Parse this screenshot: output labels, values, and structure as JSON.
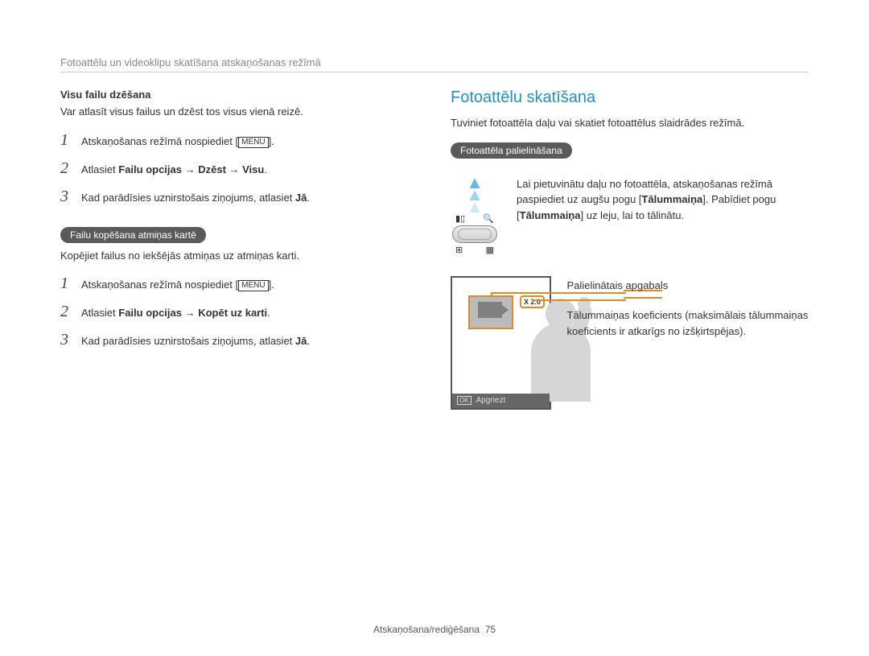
{
  "header": {
    "breadcrumb": "Fotoattēlu un videoklipu skatīšana atskaņošanas režīmā"
  },
  "left": {
    "deleteAll": {
      "heading": "Visu failu dzēšana",
      "intro": "Var atlasīt visus failus un dzēst tos visus vienā reizē.",
      "steps": {
        "s1a": "Atskaņošanas režīmā nospiediet [",
        "s1menu": "MENU",
        "s1b": "].",
        "s2a": "Atlasiet ",
        "s2b": "Failu opcijas → Dzēst → Visu",
        "s2c": ".",
        "s3a": "Kad parādīsies uznirstošais ziņojums, atlasiet ",
        "s3b": "Jā",
        "s3c": "."
      }
    },
    "copy": {
      "pill": "Failu kopēšana atmiņas kartē",
      "intro": "Kopējiet failus no iekšējās atmiņas uz atmiņas karti.",
      "steps": {
        "s1a": "Atskaņošanas režīmā nospiediet [",
        "s1menu": "MENU",
        "s1b": "].",
        "s2a": "Atlasiet ",
        "s2b": "Failu opcijas → Kopēt uz karti",
        "s2c": ".",
        "s3a": "Kad parādīsies uznirstošais ziņojums, atlasiet ",
        "s3b": "Jā",
        "s3c": "."
      }
    }
  },
  "right": {
    "title": "Fotoattēlu skatīšana",
    "intro": "Tuviniet fotoattēla daļu vai skatiet fotoattēlus slaidrādes režīmā.",
    "pill": "Fotoattēla palielināšana",
    "zoomDesc1": "Lai pietuvinātu daļu no fotoattēla, atskaņošanas režīmā paspiediet uz augšu pogu [",
    "zoomDesc2": "Tālummaiņa",
    "zoomDesc3": "]. Pabīdiet pogu [",
    "zoomDesc4": "Tālummaiņa",
    "zoomDesc5": "] uz leju, lai to tālinātu.",
    "zoomBadge": "X 2.0",
    "bottomBar": {
      "ok": "OK",
      "label": "Apgriezt"
    },
    "callout1": "Palielinātais apgabals",
    "callout2": "Tālummaiņas koeficients (maksimālais tālummaiņas koeficients ir atkarīgs no izšķirtspējas)."
  },
  "footer": {
    "label": "Atskaņošana/rediģēšana",
    "page": "75"
  },
  "nums": {
    "n1": "1",
    "n2": "2",
    "n3": "3"
  },
  "icons": {
    "battery": "▮▯",
    "zoom": "🔍",
    "grid": "⊞",
    "thumb": "▦"
  }
}
